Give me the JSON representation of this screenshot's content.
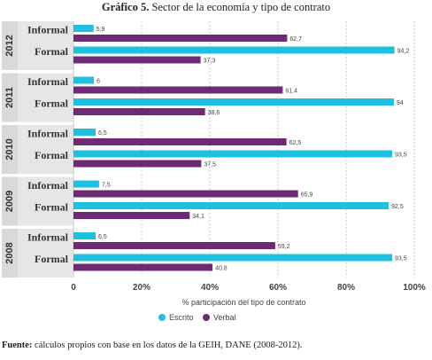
{
  "title": {
    "prefix": "Gráfico 5.",
    "text": "Sector de la economía y tipo de contrato"
  },
  "source": {
    "prefix": "Fuente:",
    "text": "cálculos propios con base en los datos de la GEIH, DANE (2008-2012)."
  },
  "chart_data": {
    "type": "bar",
    "orientation": "horizontal",
    "xlabel": "% participación del tipo de contrato",
    "xlim": [
      0,
      100
    ],
    "x_ticks": [
      "0",
      "20%",
      "40%",
      "60%",
      "80%",
      "100%"
    ],
    "x_tick_values": [
      0,
      20,
      40,
      60,
      80,
      100
    ],
    "grid": true,
    "legend_position": "bottom",
    "colors": {
      "Escrito": "#1ebfdf",
      "Verbal": "#6e2a72",
      "group_band": "#d9d9d9",
      "sector_label_bg": "#e6e6e6"
    },
    "legend": [
      "Escrito",
      "Verbal"
    ],
    "groups": [
      {
        "year": "2012",
        "rows": [
          {
            "sector": "Informal",
            "Escrito": 5.9,
            "Verbal": 62.7,
            "Escrito_label": "5,9",
            "Verbal_label": "62,7"
          },
          {
            "sector": "Formal",
            "Escrito": 94.2,
            "Verbal": 37.3,
            "Escrito_label": "94,2",
            "Verbal_label": "37,3"
          }
        ]
      },
      {
        "year": "2011",
        "rows": [
          {
            "sector": "Informal",
            "Escrito": 6,
            "Verbal": 61.4,
            "Escrito_label": "6",
            "Verbal_label": "61,4"
          },
          {
            "sector": "Formal",
            "Escrito": 94,
            "Verbal": 38.6,
            "Escrito_label": "94",
            "Verbal_label": "38,6"
          }
        ]
      },
      {
        "year": "2010",
        "rows": [
          {
            "sector": "Informal",
            "Escrito": 6.5,
            "Verbal": 62.5,
            "Escrito_label": "6,5",
            "Verbal_label": "62,5"
          },
          {
            "sector": "Formal",
            "Escrito": 93.5,
            "Verbal": 37.5,
            "Escrito_label": "93,5",
            "Verbal_label": "37,5"
          }
        ]
      },
      {
        "year": "2009",
        "rows": [
          {
            "sector": "Informal",
            "Escrito": 7.5,
            "Verbal": 65.9,
            "Escrito_label": "7,5",
            "Verbal_label": "65,9"
          },
          {
            "sector": "Formal",
            "Escrito": 92.5,
            "Verbal": 34.1,
            "Escrito_label": "92,5",
            "Verbal_label": "34,1"
          }
        ]
      },
      {
        "year": "2008",
        "rows": [
          {
            "sector": "Informal",
            "Escrito": 6.5,
            "Verbal": 59.2,
            "Escrito_label": "6,5",
            "Verbal_label": "59,2"
          },
          {
            "sector": "Formal",
            "Escrito": 93.5,
            "Verbal": 40.8,
            "Escrito_label": "93,5",
            "Verbal_label": "40,8"
          }
        ]
      }
    ]
  }
}
